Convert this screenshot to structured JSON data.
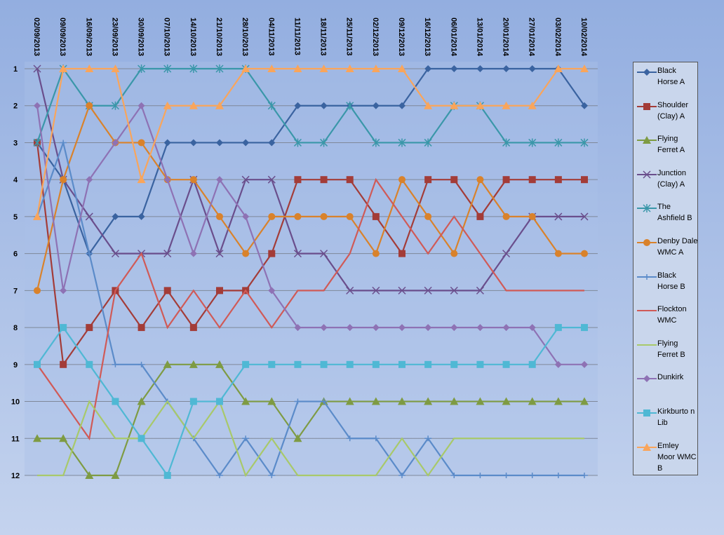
{
  "chart_data": {
    "type": "line",
    "categories": [
      "02/09/2013",
      "09/09/2013",
      "16/09/2013",
      "23/09/2013",
      "30/09/2013",
      "07/10/2013",
      "14/10/2013",
      "21/10/2013",
      "28/10/2013",
      "04/11/2013",
      "11/11/2013",
      "18/11/2013",
      "25/11/2013",
      "02/12/2013",
      "09/12/2013",
      "16/12/2013",
      "06/01/2014",
      "13/01/2014",
      "20/01/2014",
      "27/01/2014",
      "03/02/2014",
      "10/02/2014"
    ],
    "ylim": [
      1,
      12
    ],
    "y_inverted": true,
    "yticks": [
      1,
      2,
      3,
      4,
      5,
      6,
      7,
      8,
      9,
      10,
      11,
      12
    ],
    "grid": true,
    "legend": "right",
    "series": [
      {
        "name": "Black Horse A",
        "color": "#3a63a0",
        "marker": "diamond",
        "values": [
          3,
          4,
          6,
          5,
          5,
          3,
          3,
          3,
          3,
          3,
          2,
          2,
          2,
          2,
          2,
          1,
          1,
          1,
          1,
          1,
          1,
          2
        ]
      },
      {
        "name": "Shoulder (Clay) A",
        "color": "#a33c38",
        "marker": "square",
        "values": [
          3,
          9,
          8,
          7,
          8,
          7,
          8,
          7,
          7,
          6,
          4,
          4,
          4,
          5,
          6,
          4,
          4,
          5,
          4,
          4,
          4,
          4
        ]
      },
      {
        "name": "Flying Ferret A",
        "color": "#7e9b43",
        "marker": "triangle",
        "values": [
          11,
          11,
          12,
          12,
          10,
          9,
          9,
          9,
          10,
          10,
          11,
          10,
          10,
          10,
          10,
          10,
          10,
          10,
          10,
          10,
          10,
          10
        ]
      },
      {
        "name": "Junction (Clay) A",
        "color": "#6a4e8c",
        "marker": "x",
        "values": [
          1,
          4,
          5,
          6,
          6,
          6,
          4,
          6,
          4,
          4,
          6,
          6,
          7,
          7,
          7,
          7,
          7,
          7,
          6,
          5,
          5,
          5
        ]
      },
      {
        "name": "The Ashfield B",
        "color": "#3a97a9",
        "marker": "star",
        "values": [
          3,
          1,
          2,
          2,
          1,
          1,
          1,
          1,
          1,
          2,
          3,
          3,
          2,
          3,
          3,
          3,
          2,
          2,
          3,
          3,
          3,
          3
        ]
      },
      {
        "name": "Denby Dale WMC  A",
        "color": "#d9822b",
        "marker": "circle",
        "values": [
          7,
          4,
          2,
          3,
          3,
          4,
          4,
          5,
          6,
          5,
          5,
          5,
          5,
          6,
          4,
          5,
          6,
          4,
          5,
          5,
          6,
          6
        ]
      },
      {
        "name": "Black Horse B",
        "color": "#5b8bc9",
        "marker": "dash",
        "values": [
          5,
          3,
          6,
          9,
          9,
          10,
          11,
          12,
          11,
          12,
          10,
          10,
          11,
          11,
          12,
          11,
          12,
          12,
          12,
          12,
          12,
          12
        ]
      },
      {
        "name": "Flockton WMC",
        "color": "#d05a57",
        "marker": "none",
        "values": [
          9,
          10,
          11,
          7,
          6,
          8,
          7,
          8,
          7,
          8,
          7,
          7,
          6,
          4,
          5,
          6,
          5,
          6,
          7,
          7,
          7,
          7
        ]
      },
      {
        "name": "Flying Ferret B",
        "color": "#a8c96a",
        "marker": "none",
        "values": [
          12,
          12,
          10,
          11,
          11,
          10,
          11,
          10,
          12,
          11,
          12,
          12,
          12,
          12,
          11,
          12,
          11,
          11,
          11,
          11,
          11,
          11
        ]
      },
      {
        "name": "Dunkirk",
        "color": "#8e72b4",
        "marker": "diamond",
        "values": [
          2,
          7,
          4,
          3,
          2,
          4,
          6,
          4,
          5,
          7,
          8,
          8,
          8,
          8,
          8,
          8,
          8,
          8,
          8,
          8,
          9,
          9
        ]
      },
      {
        "name": "Kirkburto n Lib",
        "color": "#4fb8d4",
        "marker": "square",
        "values": [
          9,
          8,
          9,
          10,
          11,
          12,
          10,
          10,
          9,
          9,
          9,
          9,
          9,
          9,
          9,
          9,
          9,
          9,
          9,
          9,
          8,
          8
        ]
      },
      {
        "name": "Emley Moor WMC B",
        "color": "#f9a55b",
        "marker": "triangle",
        "values": [
          5,
          1,
          1,
          1,
          4,
          2,
          2,
          2,
          1,
          1,
          1,
          1,
          1,
          1,
          1,
          2,
          2,
          2,
          2,
          2,
          1,
          1
        ]
      }
    ]
  }
}
